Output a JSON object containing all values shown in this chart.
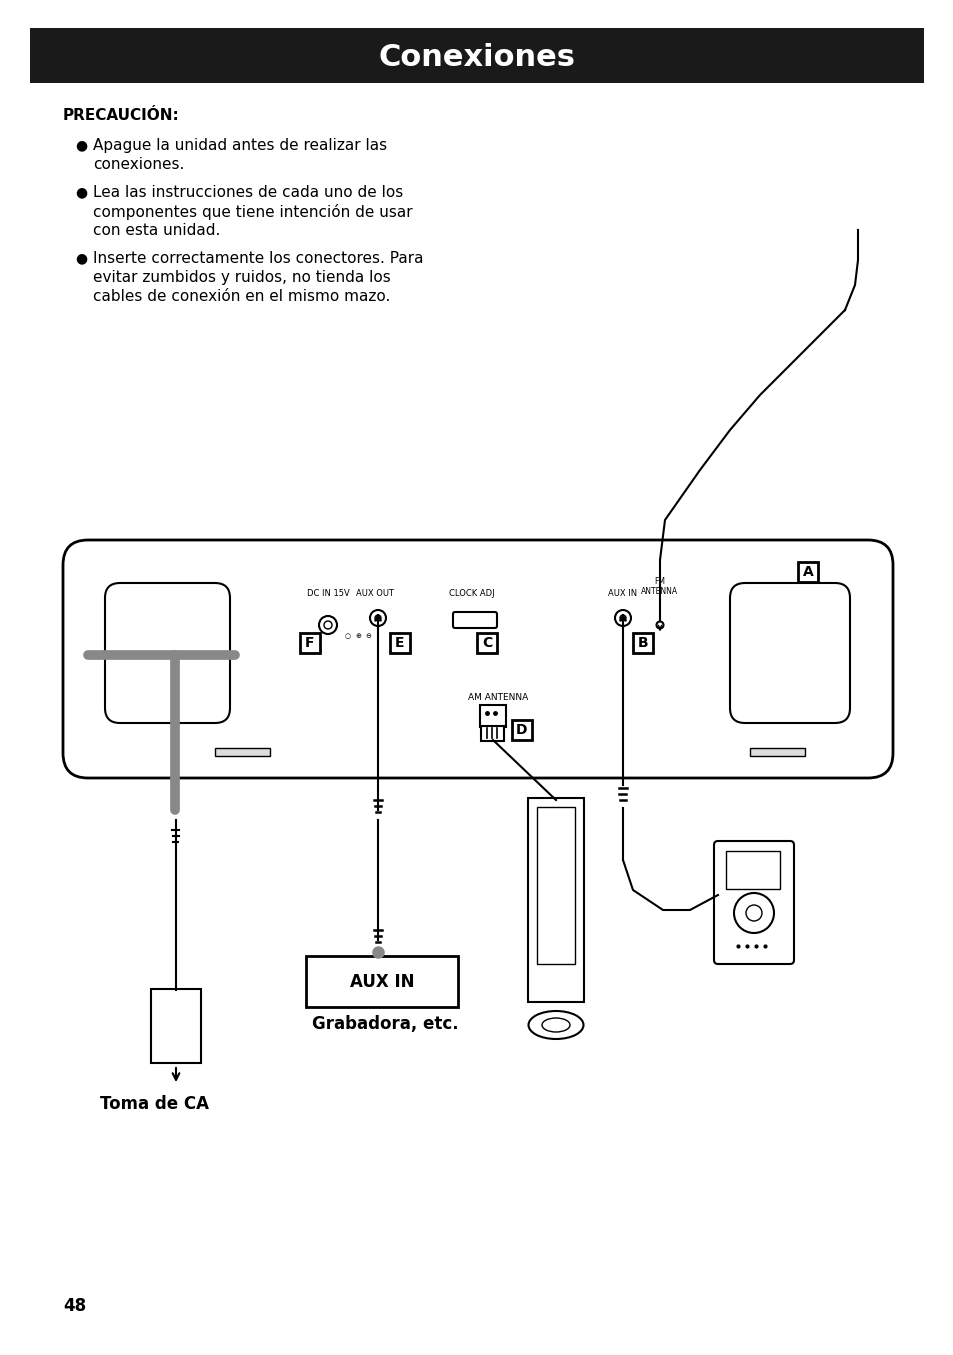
{
  "title": "Conexiones",
  "title_bg": "#1a1a1a",
  "title_color": "#ffffff",
  "title_fontsize": 22,
  "page_number": "48",
  "precaucion_header": "PRECAUCIÓN:",
  "bullet1_line1": "Apague la unidad antes de realizar las",
  "bullet1_line2": "conexiones.",
  "bullet2_line1": "Lea las instrucciones de cada uno de los",
  "bullet2_line2": "componentes que tiene intención de usar",
  "bullet2_line3": "con esta unidad.",
  "bullet3_line1": "Inserte correctamente los conectores. Para",
  "bullet3_line2": "evitar zumbidos y ruidos, no tienda los",
  "bullet3_line3": "cables de conexión en el mismo mazo.",
  "label_A": "A",
  "label_B": "B",
  "label_C": "C",
  "label_D": "D",
  "label_E": "E",
  "label_F": "F",
  "text_dc_in": "DC IN 15V",
  "text_aux_out": "AUX OUT",
  "text_clock_adj": "CLOCK ADJ",
  "text_aux_in_label": "AUX IN",
  "text_fm_antenna": "FM\nANTENNA",
  "text_am_antenna": "AM ANTENNA",
  "text_aux_in_box": "AUX IN",
  "text_grabadora": "Grabadora, etc.",
  "text_toma_ca": "Toma de CA",
  "bg_color": "#ffffff",
  "line_color": "#000000"
}
